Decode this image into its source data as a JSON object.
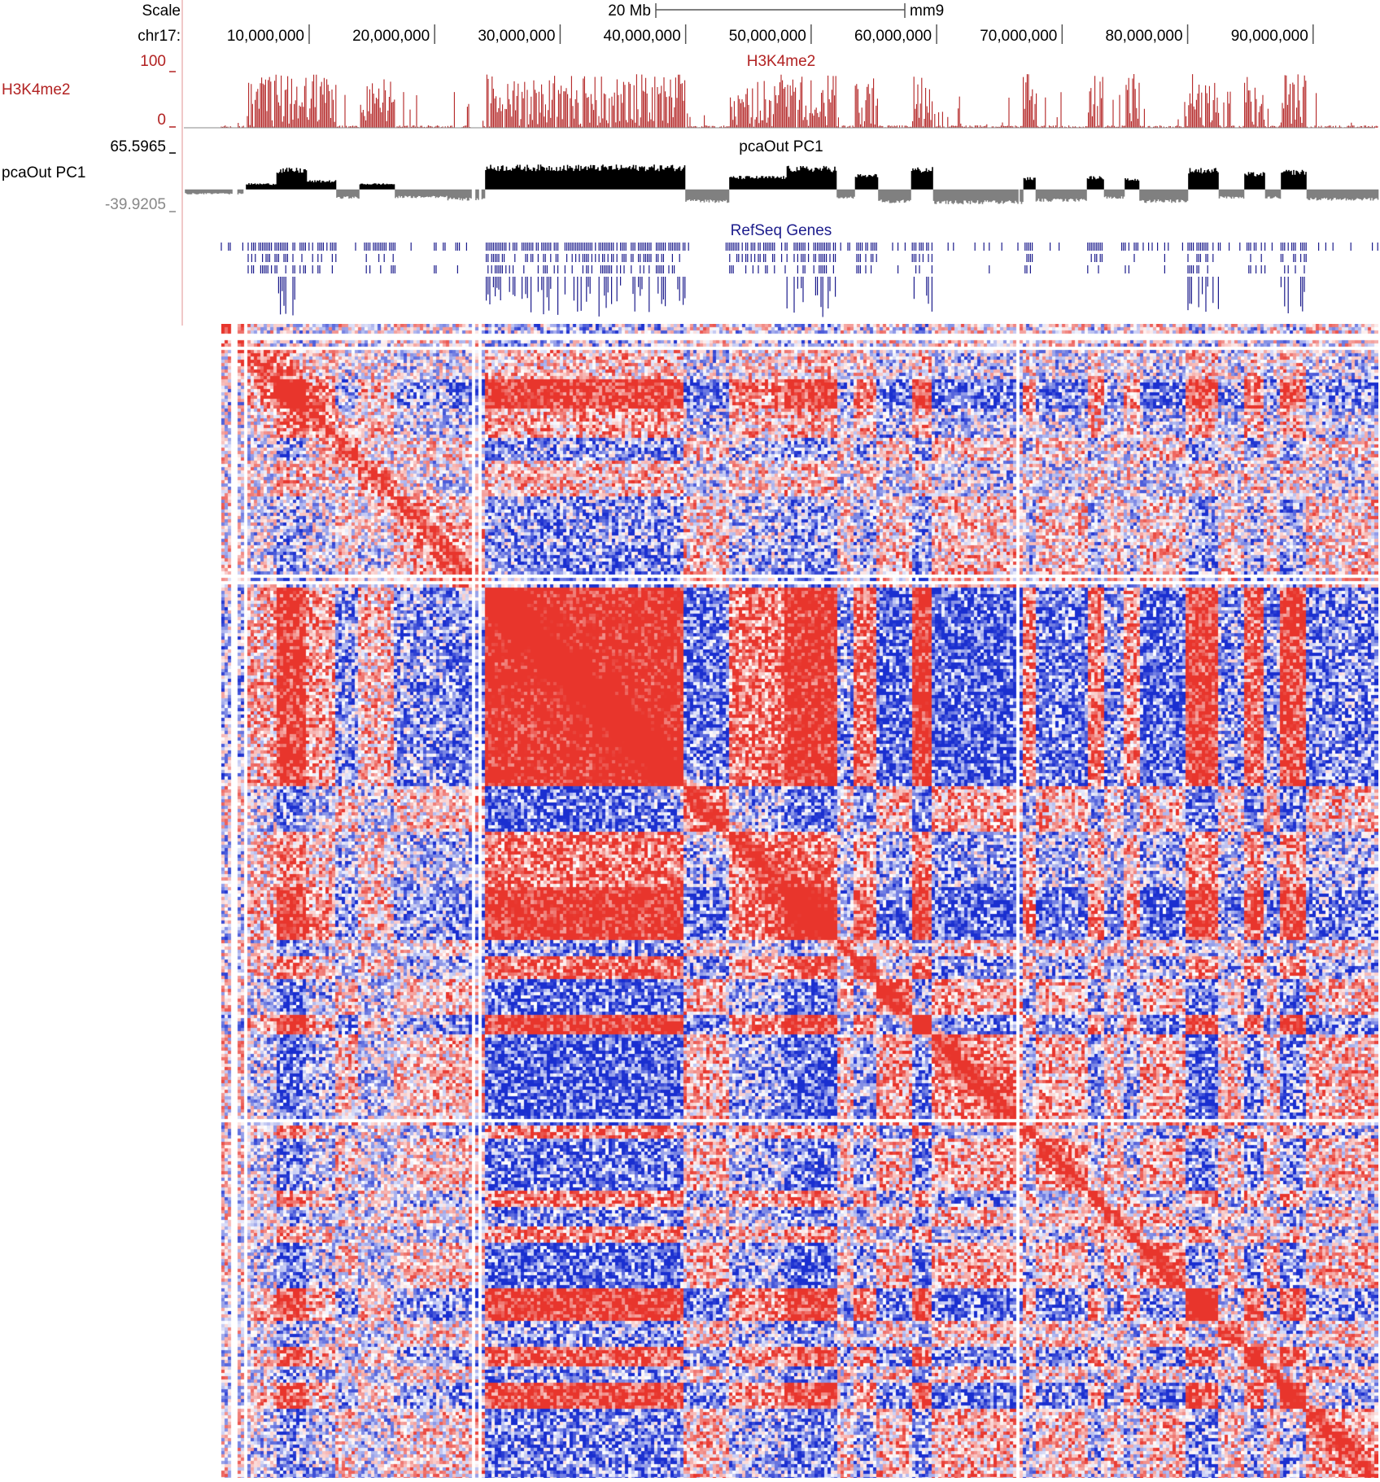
{
  "assembly": "mm9",
  "chromosome_label": "chr17:",
  "scale": {
    "label": "Scale",
    "bar_label": "20 Mb",
    "assembly_label": "mm9"
  },
  "colors": {
    "h3k4me2": "#b22222",
    "pc1_positive": "#000000",
    "pc1_negative": "#808080",
    "refseq": "#1c1c8c",
    "heat_high": "#e8352c",
    "heat_low": "#1a2fd0",
    "heat_mid": "#ffffff",
    "separator": "#f0c8c8"
  },
  "tracks": {
    "h3k4me2": {
      "name": "H3K4me2",
      "center_label": "H3K4me2",
      "max_label": "100",
      "min_label": "0"
    },
    "pca": {
      "name": "pcaOut PC1",
      "center_label": "pcaOut PC1",
      "max_label": "65.5965",
      "min_label": "-39.9205"
    },
    "refseq": {
      "center_label": "RefSeq Genes"
    }
  },
  "chart_data": {
    "type": "heatmap",
    "x_axis": {
      "tick_labels": [
        "10,000,000",
        "20,000,000",
        "30,000,000",
        "40,000,000",
        "50,000,000",
        "60,000,000",
        "70,000,000",
        "80,000,000",
        "90,000,000"
      ],
      "tick_values": [
        10000000,
        20000000,
        30000000,
        40000000,
        50000000,
        60000000,
        70000000,
        80000000,
        90000000
      ],
      "range": [
        3000000,
        95200000
      ]
    },
    "compartments": [
      {
        "start": 3000000,
        "end": 5000000,
        "pc1": -8
      },
      {
        "start": 5000000,
        "end": 7400000,
        "pc1": 10
      },
      {
        "start": 7400000,
        "end": 9800000,
        "pc1": 35
      },
      {
        "start": 9800000,
        "end": 12200000,
        "pc1": 15
      },
      {
        "start": 12200000,
        "end": 14000000,
        "pc1": -15
      },
      {
        "start": 14000000,
        "end": 16800000,
        "pc1": 10
      },
      {
        "start": 16800000,
        "end": 21000000,
        "pc1": -14
      },
      {
        "start": 21000000,
        "end": 24000000,
        "pc1": -18
      },
      {
        "start": 24000000,
        "end": 40000000,
        "pc1": 40
      },
      {
        "start": 40000000,
        "end": 43500000,
        "pc1": -22
      },
      {
        "start": 43500000,
        "end": 48000000,
        "pc1": 22
      },
      {
        "start": 48000000,
        "end": 52000000,
        "pc1": 38
      },
      {
        "start": 52000000,
        "end": 53500000,
        "pc1": -15
      },
      {
        "start": 53500000,
        "end": 55300000,
        "pc1": 25
      },
      {
        "start": 55300000,
        "end": 58000000,
        "pc1": -22
      },
      {
        "start": 58000000,
        "end": 59700000,
        "pc1": 36
      },
      {
        "start": 59700000,
        "end": 66900000,
        "pc1": -24
      },
      {
        "start": 66900000,
        "end": 67900000,
        "pc1": 20
      },
      {
        "start": 67900000,
        "end": 72000000,
        "pc1": -20
      },
      {
        "start": 72000000,
        "end": 73300000,
        "pc1": 22
      },
      {
        "start": 73300000,
        "end": 75000000,
        "pc1": -15
      },
      {
        "start": 75000000,
        "end": 76200000,
        "pc1": 18
      },
      {
        "start": 76200000,
        "end": 80000000,
        "pc1": -22
      },
      {
        "start": 80000000,
        "end": 82500000,
        "pc1": 35
      },
      {
        "start": 82500000,
        "end": 84500000,
        "pc1": -15
      },
      {
        "start": 84500000,
        "end": 86200000,
        "pc1": 28
      },
      {
        "start": 86200000,
        "end": 87400000,
        "pc1": -15
      },
      {
        "start": 87400000,
        "end": 89500000,
        "pc1": 32
      },
      {
        "start": 89500000,
        "end": 95200000,
        "pc1": -18
      }
    ],
    "gaps": [
      {
        "start": 3900000,
        "end": 4300000
      },
      {
        "start": 4800000,
        "end": 5000000
      },
      {
        "start": 23000000,
        "end": 23250000
      },
      {
        "start": 23550000,
        "end": 23700000
      },
      {
        "start": 66500000,
        "end": 66650000
      }
    ],
    "colorscale": "blue-white-red"
  }
}
